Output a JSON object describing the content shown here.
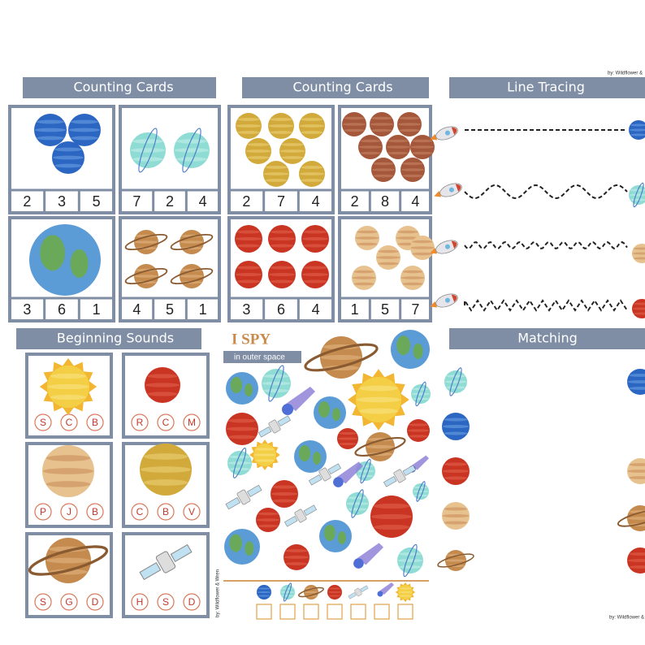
{
  "counting_cards_1": {
    "title": "Counting Cards",
    "cards": [
      {
        "numbers": [
          2,
          3,
          5
        ]
      },
      {
        "numbers": [
          7,
          2,
          4
        ]
      },
      {
        "numbers": [
          3,
          6,
          1
        ]
      },
      {
        "numbers": [
          4,
          5,
          1
        ]
      }
    ]
  },
  "counting_cards_2": {
    "title": "Counting Cards",
    "cards": [
      {
        "numbers": [
          2,
          7,
          4
        ]
      },
      {
        "numbers": [
          2,
          8,
          4
        ]
      },
      {
        "numbers": [
          3,
          6,
          4
        ]
      },
      {
        "numbers": [
          1,
          5,
          7
        ]
      }
    ]
  },
  "line_tracing": {
    "title": "Line Tracing",
    "credit": "by: Wildflower &"
  },
  "beginning_sounds": {
    "title": "Beginning Sounds",
    "cards": [
      {
        "letters": [
          "S",
          "C",
          "B"
        ]
      },
      {
        "letters": [
          "R",
          "C",
          "M"
        ]
      },
      {
        "letters": [
          "P",
          "J",
          "B"
        ]
      },
      {
        "letters": [
          "C",
          "B",
          "V"
        ]
      },
      {
        "letters": [
          "S",
          "G",
          "D"
        ]
      },
      {
        "letters": [
          "H",
          "S",
          "D"
        ]
      }
    ]
  },
  "i_spy": {
    "title": "I SPY",
    "subtitle": "in outer space",
    "credit": "by: Wildflower & Wren"
  },
  "matching": {
    "title": "Matching",
    "credit": "by: Wildflower &"
  }
}
